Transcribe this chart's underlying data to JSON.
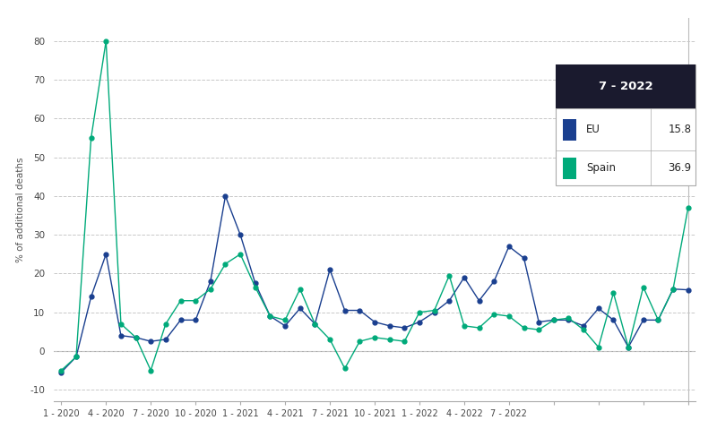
{
  "ylabel": "% of additional deaths",
  "background_color": "#ffffff",
  "grid_color": "#c8c8c8",
  "eu_color": "#1a3f8f",
  "spain_color": "#00aa7a",
  "ylim": [
    -13,
    86
  ],
  "yticks": [
    -10,
    0,
    10,
    20,
    30,
    40,
    50,
    60,
    70,
    80
  ],
  "x_tick_labels": [
    "1 - 2020",
    "4 - 2020",
    "7 - 2020",
    "10 - 2020",
    "1 - 2021",
    "4 - 2021",
    "7 - 2021",
    "10 - 2021",
    "1 - 2022",
    "4 - 2022",
    "7 - 2022"
  ],
  "eu_data": [
    -5.5,
    -1.5,
    14.0,
    25.0,
    4.0,
    3.5,
    2.5,
    3.0,
    8.0,
    8.0,
    18.0,
    40.0,
    30.0,
    17.5,
    9.0,
    6.5,
    11.0,
    7.0,
    21.0,
    10.5,
    10.5,
    7.5,
    6.5,
    6.0,
    7.5,
    10.0,
    13.0,
    19.0,
    13.0,
    18.0,
    27.0,
    24.0,
    7.5,
    8.0,
    8.0,
    6.5,
    11.0,
    8.0,
    1.0,
    8.0,
    8.0,
    16.0,
    15.8
  ],
  "spain_data": [
    -5.0,
    -1.5,
    55.0,
    80.0,
    7.0,
    3.5,
    -5.0,
    7.0,
    13.0,
    13.0,
    16.0,
    22.5,
    25.0,
    16.5,
    9.0,
    8.0,
    16.0,
    7.0,
    3.0,
    -4.5,
    2.5,
    3.5,
    3.0,
    2.5,
    10.0,
    10.5,
    19.5,
    6.5,
    6.0,
    9.5,
    9.0,
    6.0,
    5.5,
    8.0,
    8.5,
    5.5,
    1.0,
    15.0,
    1.0,
    16.5,
    8.0,
    16.0,
    36.9
  ],
  "tooltip_date": "7 - 2022",
  "tooltip_eu": "15.8",
  "tooltip_spain": "36.9",
  "n_points": 43,
  "header_color": "#1a1a2e",
  "tooltip_border_color": "#aaaaaa"
}
